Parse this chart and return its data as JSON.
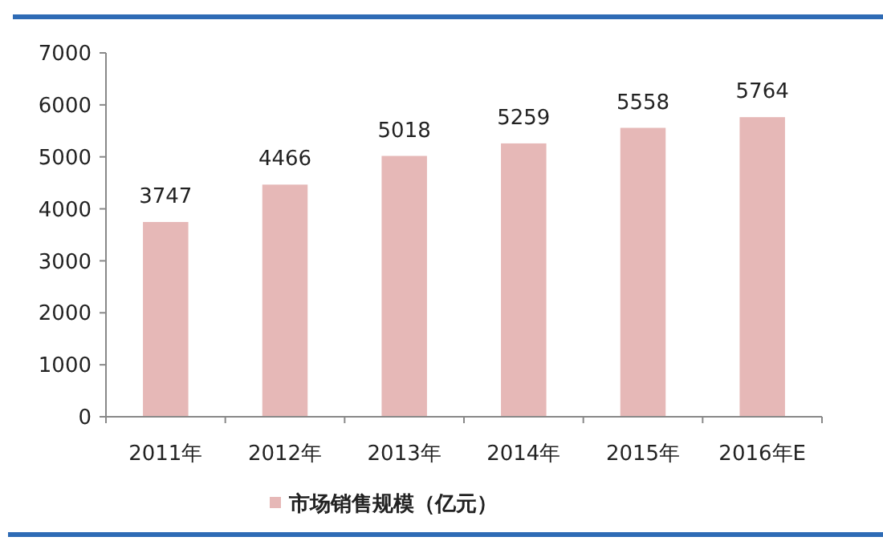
{
  "chart_data": {
    "type": "bar",
    "categories": [
      "2011年",
      "2012年",
      "2013年",
      "2014年",
      "2015年",
      "2016年E"
    ],
    "series": [
      {
        "name": "市场销售规模（亿元）",
        "color": "#e6b8b7",
        "values": [
          3747,
          4466,
          5018,
          5259,
          5558,
          5764
        ]
      }
    ],
    "ylim": [
      0,
      7000
    ],
    "yticks": [
      0,
      1000,
      2000,
      3000,
      4000,
      5000,
      6000,
      7000
    ],
    "data_labels": true,
    "grid": false,
    "legend": "bottom"
  }
}
